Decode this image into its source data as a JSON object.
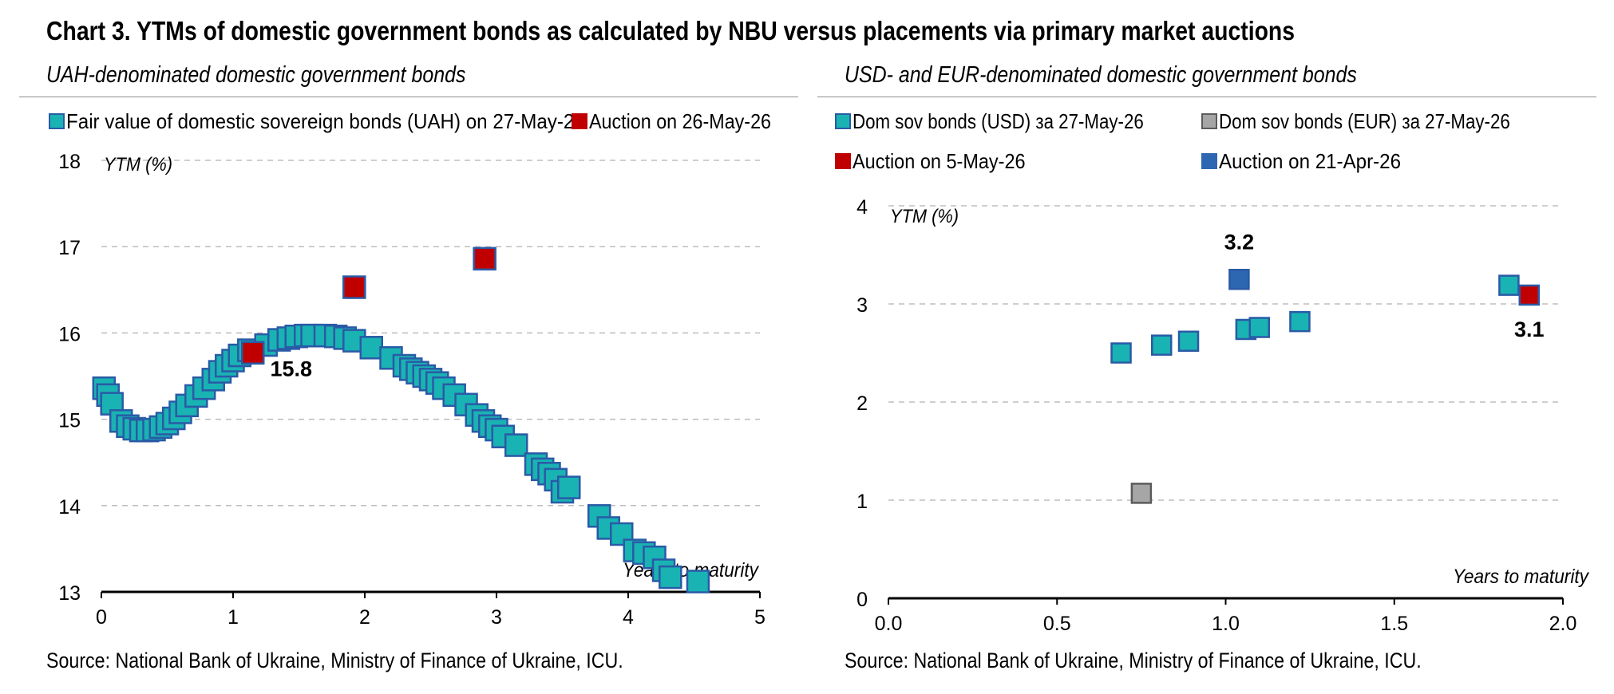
{
  "title": "Chart 3. YTMs of domestic government bonds as calculated by NBU versus placements via primary market auctions",
  "source_left": "Source: National Bank of Ukraine, Ministry of Finance of Ukraine, ICU.",
  "source_right": "Source: National Bank of Ukraine, Ministry of Finance of Ukraine, ICU.",
  "colors": {
    "teal": "#19b3b3",
    "navy_edge": "#2a5aa6",
    "grey": "#a6a6a6",
    "red": "#c00000",
    "blue": "#2e67b1"
  },
  "chart_data": [
    {
      "type": "scatter",
      "subtitle": "UAH-denominated domestic government bonds",
      "ylabel": "YTM (%)",
      "xlabel": "Years to maturity",
      "xlim": [
        0,
        5
      ],
      "ylim": [
        13,
        18
      ],
      "xticks": [
        "0",
        "1",
        "2",
        "3",
        "4",
        "5"
      ],
      "yticks": [
        "13",
        "14",
        "15",
        "16",
        "17",
        "18"
      ],
      "grid": true,
      "legend_position": "top",
      "series": [
        {
          "name": "Fair value of domestic sovereign bonds (UAH) on 27-May-26",
          "color": "#19b3b3",
          "points": [
            [
              0.02,
              15.36
            ],
            [
              0.05,
              15.28
            ],
            [
              0.08,
              15.18
            ],
            [
              0.15,
              14.98
            ],
            [
              0.2,
              14.92
            ],
            [
              0.25,
              14.89
            ],
            [
              0.3,
              14.87
            ],
            [
              0.35,
              14.87
            ],
            [
              0.4,
              14.88
            ],
            [
              0.45,
              14.91
            ],
            [
              0.5,
              14.95
            ],
            [
              0.55,
              15.01
            ],
            [
              0.6,
              15.08
            ],
            [
              0.65,
              15.16
            ],
            [
              0.72,
              15.27
            ],
            [
              0.78,
              15.36
            ],
            [
              0.85,
              15.46
            ],
            [
              0.9,
              15.55
            ],
            [
              0.95,
              15.62
            ],
            [
              1.0,
              15.68
            ],
            [
              1.05,
              15.74
            ],
            [
              1.12,
              15.8
            ],
            [
              1.25,
              15.86
            ],
            [
              1.35,
              15.92
            ],
            [
              1.42,
              15.94
            ],
            [
              1.48,
              15.96
            ],
            [
              1.55,
              15.97
            ],
            [
              1.6,
              15.97
            ],
            [
              1.7,
              15.97
            ],
            [
              1.78,
              15.96
            ],
            [
              1.85,
              15.94
            ],
            [
              1.92,
              15.91
            ],
            [
              2.05,
              15.83
            ],
            [
              2.2,
              15.71
            ],
            [
              2.3,
              15.62
            ],
            [
              2.35,
              15.58
            ],
            [
              2.4,
              15.54
            ],
            [
              2.45,
              15.5
            ],
            [
              2.5,
              15.46
            ],
            [
              2.55,
              15.42
            ],
            [
              2.6,
              15.36
            ],
            [
              2.68,
              15.28
            ],
            [
              2.77,
              15.17
            ],
            [
              2.85,
              15.05
            ],
            [
              2.9,
              14.98
            ],
            [
              2.95,
              14.92
            ],
            [
              3.0,
              14.88
            ],
            [
              3.05,
              14.8
            ],
            [
              3.15,
              14.7
            ],
            [
              3.3,
              14.48
            ],
            [
              3.35,
              14.42
            ],
            [
              3.4,
              14.37
            ],
            [
              3.45,
              14.3
            ],
            [
              3.5,
              14.16
            ],
            [
              3.55,
              14.21
            ],
            [
              3.78,
              13.88
            ],
            [
              3.85,
              13.74
            ],
            [
              3.95,
              13.67
            ],
            [
              4.05,
              13.48
            ],
            [
              4.12,
              13.45
            ],
            [
              4.2,
              13.4
            ],
            [
              4.27,
              13.25
            ],
            [
              4.32,
              13.17
            ],
            [
              4.53,
              13.12
            ]
          ]
        },
        {
          "name": "Auction on 26-May-26",
          "color": "#c00000",
          "points": [
            [
              1.15,
              15.77
            ],
            [
              1.92,
              16.53
            ],
            [
              2.91,
              16.86
            ]
          ]
        }
      ],
      "annotations": [
        {
          "text": "15.8",
          "x": 1.15,
          "y": 15.77
        }
      ]
    },
    {
      "type": "scatter",
      "subtitle": "USD- and EUR-denominated domestic government bonds",
      "ylabel": "YTM (%)",
      "xlabel": "Years to maturity",
      "xlim": [
        0,
        2
      ],
      "ylim": [
        0,
        4
      ],
      "xticks": [
        "0.0",
        "0.5",
        "1.0",
        "1.5",
        "2.0"
      ],
      "yticks": [
        "0",
        "1",
        "2",
        "3",
        "4"
      ],
      "grid": true,
      "legend_position": "top",
      "series": [
        {
          "name": "Dom sov bonds (USD) за 27-May-26",
          "color": "#19b3b3",
          "points": [
            [
              0.69,
              2.5
            ],
            [
              0.81,
              2.58
            ],
            [
              0.89,
              2.62
            ],
            [
              1.06,
              2.74
            ],
            [
              1.1,
              2.76
            ],
            [
              1.22,
              2.82
            ],
            [
              1.84,
              3.19
            ]
          ]
        },
        {
          "name": "Dom sov bonds (EUR) за 27-May-26",
          "color": "#a6a6a6",
          "points": [
            [
              0.75,
              1.07
            ]
          ]
        },
        {
          "name": "Auction on 5-May-26",
          "color": "#c00000",
          "points": [
            [
              1.9,
              3.09
            ]
          ]
        },
        {
          "name": "Auction on 21-Apr-26",
          "color": "#2e67b1",
          "points": [
            [
              1.04,
              3.25
            ]
          ]
        }
      ],
      "annotations": [
        {
          "text": "3.2",
          "x": 1.04,
          "y": 3.25
        },
        {
          "text": "3.1",
          "x": 1.9,
          "y": 3.09
        }
      ]
    }
  ]
}
